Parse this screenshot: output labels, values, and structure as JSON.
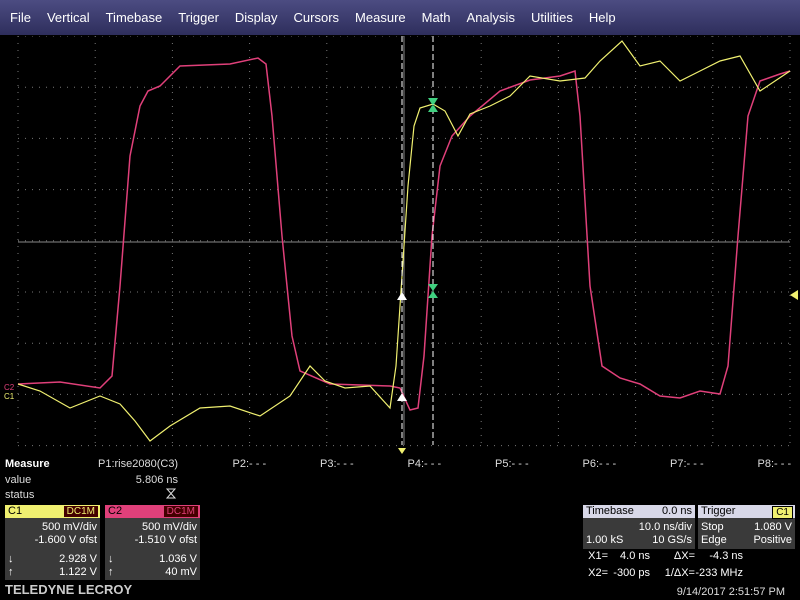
{
  "menu": [
    "File",
    "Vertical",
    "Timebase",
    "Trigger",
    "Display",
    "Cursors",
    "Measure",
    "Math",
    "Analysis",
    "Utilities",
    "Help"
  ],
  "trace_labels": [
    "C2",
    "C1"
  ],
  "measure": {
    "title": "Measure",
    "params": [
      "P1:rise2080(C3)",
      "P2:- - -",
      "P3:- - -",
      "P4:- - -",
      "P5:- - -",
      "P6:- - -",
      "P7:- - -",
      "P8:- - -"
    ],
    "row_labels": [
      "value",
      "status"
    ],
    "value": "5.806 ns"
  },
  "channels": [
    {
      "name": "C1",
      "coupling": "DC1M",
      "scale": "500 mV/div",
      "offset": "-1.600 V ofst",
      "readouts": [
        "2.928 V",
        "1.122 V"
      ]
    },
    {
      "name": "C2",
      "coupling": "DC1M",
      "scale": "500 mV/div",
      "offset": "-1.510 V ofst",
      "readouts": [
        "1.036 V",
        "40 mV"
      ]
    }
  ],
  "timebase": {
    "title": "Timebase",
    "delay": "0.0 ns",
    "scale": "10.0 ns/div",
    "samples": "1.00 kS",
    "rate": "10 GS/s"
  },
  "trigger": {
    "title": "Trigger",
    "source": "C1",
    "mode": "Stop",
    "level": "1.080 V",
    "type": "Edge",
    "slope": "Positive"
  },
  "cursors": [
    {
      "label": "X1=",
      "value": "4.0 ns",
      "delta_label": "ΔX=",
      "delta": "-4.3 ns"
    },
    {
      "label": "X2=",
      "value": "-300 ps",
      "delta_label": "1/ΔX=",
      "delta": "-233 MHz"
    }
  ],
  "brand": "TELEDYNE LECROY",
  "timestamp": "9/14/2017 2:51:57 PM"
}
